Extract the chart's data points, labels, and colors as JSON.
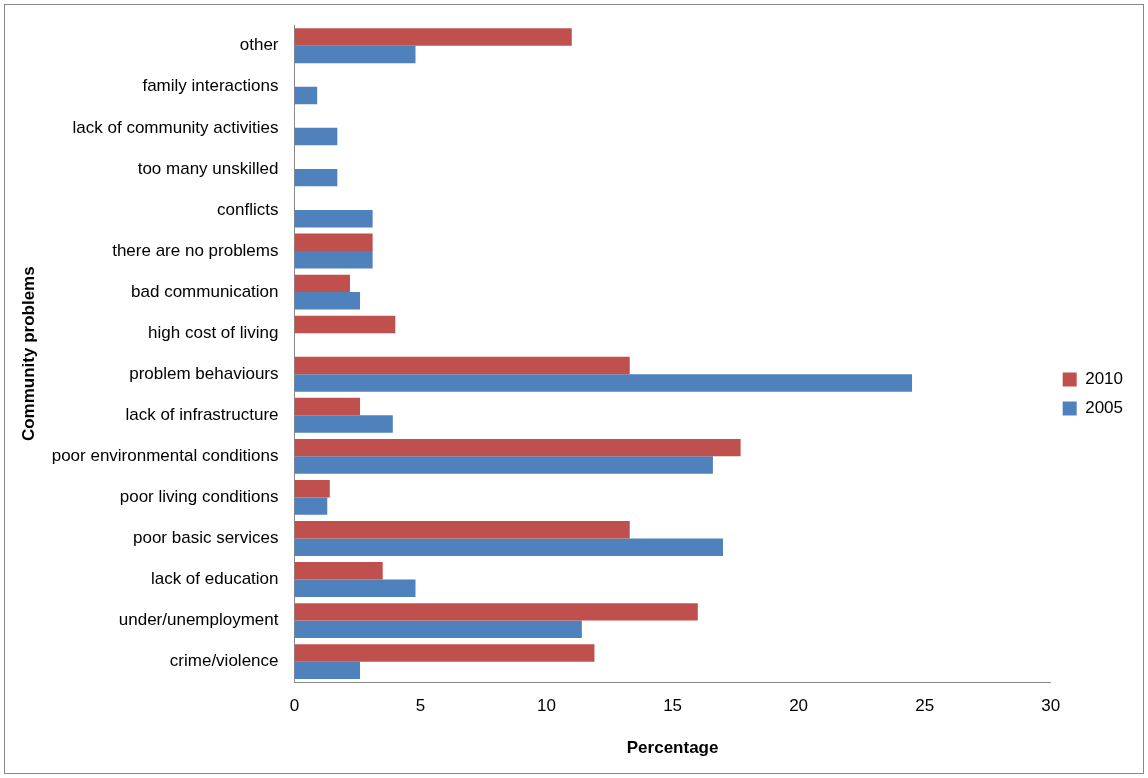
{
  "chart_data": {
    "type": "bar",
    "orientation": "horizontal",
    "xlabel": "Percentage",
    "ylabel": "Community problems",
    "categories": [
      "other",
      "family interactions",
      "lack of community activities",
      "too many unskilled",
      "conflicts",
      "there are no problems",
      "bad communication",
      "high cost of living",
      "problem behaviours",
      "lack of infrastructure",
      "poor environmental conditions",
      "poor living conditions",
      "poor basic services",
      "lack of education",
      "under/unemployment",
      "crime/violence"
    ],
    "series": [
      {
        "name": "2010",
        "color": "#c0504d",
        "values": [
          11.0,
          null,
          null,
          null,
          null,
          3.1,
          2.2,
          4.0,
          13.3,
          2.6,
          17.7,
          1.4,
          13.3,
          3.5,
          16.0,
          11.9
        ]
      },
      {
        "name": "2005",
        "color": "#4f81bd",
        "values": [
          4.8,
          0.9,
          1.7,
          1.7,
          3.1,
          3.1,
          2.6,
          null,
          24.5,
          3.9,
          16.6,
          1.3,
          17.0,
          4.8,
          11.4,
          2.6
        ]
      }
    ],
    "xlim": [
      0,
      30
    ],
    "xticks": [
      0,
      5,
      10,
      15,
      20,
      25,
      30
    ],
    "grid": false,
    "legend": "right"
  }
}
